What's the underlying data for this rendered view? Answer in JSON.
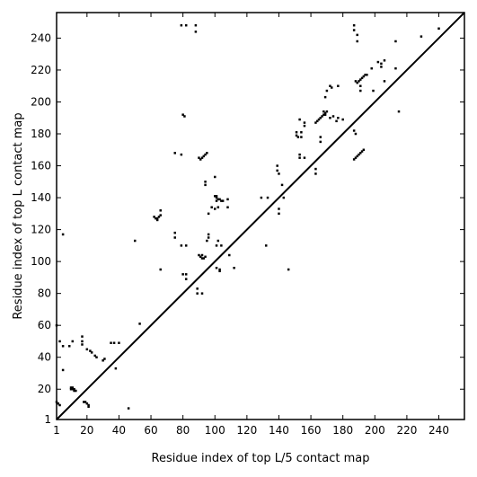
{
  "chart_data": {
    "type": "scatter",
    "title": "",
    "xlabel": "Residue index of top L/5 contact map",
    "ylabel": "Residue index of top L contact map",
    "xlim": [
      1,
      256
    ],
    "ylim": [
      1,
      256
    ],
    "xticks": [
      1,
      20,
      40,
      60,
      80,
      100,
      120,
      140,
      160,
      180,
      200,
      220,
      240
    ],
    "yticks": [
      1,
      20,
      40,
      60,
      80,
      100,
      120,
      140,
      160,
      180,
      200,
      220,
      240
    ],
    "diagonal_line": true,
    "grid": false,
    "marker_color": "#000000",
    "series": [
      {
        "name": "",
        "role": "top L/5 contacts (below diagonal)",
        "points": [
          [
            10,
            21
          ],
          [
            11,
            21
          ],
          [
            12,
            20
          ],
          [
            11,
            20
          ],
          [
            12,
            19
          ],
          [
            13,
            19
          ],
          [
            10,
            20
          ],
          [
            18,
            12
          ],
          [
            19,
            12
          ],
          [
            20,
            11
          ],
          [
            21,
            10
          ],
          [
            21,
            9
          ],
          [
            25,
            41
          ],
          [
            26,
            40
          ],
          [
            22,
            44
          ],
          [
            23,
            43
          ],
          [
            90,
            165
          ],
          [
            91,
            164
          ],
          [
            92,
            165
          ],
          [
            93,
            166
          ],
          [
            94,
            167
          ],
          [
            95,
            168
          ],
          [
            90,
            104
          ],
          [
            91,
            103
          ],
          [
            92,
            102
          ],
          [
            93,
            102
          ],
          [
            94,
            103
          ],
          [
            92,
            104
          ],
          [
            100,
            141
          ],
          [
            101,
            140
          ],
          [
            102,
            139
          ],
          [
            103,
            139
          ],
          [
            104,
            138
          ],
          [
            105,
            138
          ],
          [
            163,
            187
          ],
          [
            164,
            188
          ],
          [
            165,
            189
          ],
          [
            166,
            190
          ],
          [
            167,
            191
          ],
          [
            168,
            192
          ],
          [
            169,
            193
          ],
          [
            170,
            194
          ],
          [
            168,
            194
          ],
          [
            169,
            192
          ],
          [
            187,
            164
          ],
          [
            188,
            165
          ],
          [
            189,
            166
          ],
          [
            190,
            167
          ],
          [
            191,
            168
          ],
          [
            192,
            169
          ],
          [
            193,
            170
          ],
          [
            188,
            213
          ],
          [
            189,
            212
          ],
          [
            190,
            213
          ],
          [
            191,
            214
          ],
          [
            192,
            215
          ],
          [
            193,
            216
          ],
          [
            194,
            217
          ],
          [
            195,
            217
          ]
        ]
      },
      {
        "name": "",
        "role": "top L contacts (above diagonal)",
        "points": [
          [
            1,
            60
          ],
          [
            1,
            12
          ],
          [
            2,
            11
          ],
          [
            3,
            10
          ],
          [
            3,
            50
          ],
          [
            5,
            47
          ],
          [
            5,
            117
          ],
          [
            5,
            32
          ],
          [
            9,
            47
          ],
          [
            11,
            50
          ],
          [
            17,
            53
          ],
          [
            17,
            50
          ],
          [
            17,
            48
          ],
          [
            20,
            45
          ],
          [
            30,
            38
          ],
          [
            31,
            39
          ],
          [
            35,
            49
          ],
          [
            37,
            49
          ],
          [
            38,
            33
          ],
          [
            40,
            49
          ],
          [
            46,
            8
          ],
          [
            50,
            113
          ],
          [
            53,
            61
          ],
          [
            62,
            128
          ],
          [
            63,
            127
          ],
          [
            64,
            127
          ],
          [
            64,
            126
          ],
          [
            65,
            128
          ],
          [
            66,
            132
          ],
          [
            66,
            129
          ],
          [
            66,
            95
          ],
          [
            75,
            118
          ],
          [
            75,
            115
          ],
          [
            75,
            168
          ],
          [
            79,
            167
          ],
          [
            79,
            110
          ],
          [
            80,
            192
          ],
          [
            81,
            191
          ],
          [
            79,
            248
          ],
          [
            82,
            248
          ],
          [
            80,
            92
          ],
          [
            82,
            89
          ],
          [
            82,
            92
          ],
          [
            82,
            110
          ],
          [
            88,
            248
          ],
          [
            88,
            244
          ],
          [
            89,
            83
          ],
          [
            89,
            80
          ],
          [
            92,
            80
          ],
          [
            94,
            150
          ],
          [
            94,
            148
          ],
          [
            95,
            113
          ],
          [
            96,
            130
          ],
          [
            96,
            117
          ],
          [
            96,
            115
          ],
          [
            98,
            134
          ],
          [
            100,
            133
          ],
          [
            100,
            153
          ],
          [
            101,
            141
          ],
          [
            101,
            138
          ],
          [
            101,
            110
          ],
          [
            101,
            96
          ],
          [
            102,
            113
          ],
          [
            102,
            134
          ],
          [
            103,
            94
          ],
          [
            103,
            95
          ],
          [
            104,
            110
          ],
          [
            108,
            139
          ],
          [
            108,
            134
          ],
          [
            109,
            104
          ],
          [
            112,
            96
          ],
          [
            129,
            140
          ],
          [
            132,
            110
          ],
          [
            133,
            140
          ],
          [
            139,
            160
          ],
          [
            139,
            157
          ],
          [
            140,
            155
          ],
          [
            140,
            133
          ],
          [
            140,
            130
          ],
          [
            142,
            148
          ],
          [
            143,
            140
          ],
          [
            146,
            95
          ],
          [
            151,
            181
          ],
          [
            151,
            179
          ],
          [
            152,
            178
          ],
          [
            153,
            167
          ],
          [
            153,
            165
          ],
          [
            153,
            189
          ],
          [
            154,
            178
          ],
          [
            154,
            181
          ],
          [
            156,
            187
          ],
          [
            156,
            185
          ],
          [
            156,
            165
          ],
          [
            163,
            158
          ],
          [
            163,
            155
          ],
          [
            166,
            178
          ],
          [
            166,
            175
          ],
          [
            169,
            203
          ],
          [
            170,
            207
          ],
          [
            172,
            190
          ],
          [
            172,
            210
          ],
          [
            173,
            209
          ],
          [
            174,
            191
          ],
          [
            176,
            188
          ],
          [
            177,
            190
          ],
          [
            177,
            210
          ],
          [
            180,
            189
          ],
          [
            187,
            248
          ],
          [
            187,
            245
          ],
          [
            187,
            182
          ],
          [
            188,
            180
          ],
          [
            189,
            242
          ],
          [
            189,
            238
          ],
          [
            191,
            207
          ],
          [
            191,
            210
          ],
          [
            198,
            221
          ],
          [
            199,
            207
          ],
          [
            202,
            225
          ],
          [
            204,
            224
          ],
          [
            204,
            222
          ],
          [
            206,
            213
          ],
          [
            206,
            226
          ],
          [
            213,
            238
          ],
          [
            213,
            221
          ],
          [
            215,
            194
          ],
          [
            229,
            241
          ],
          [
            240,
            246
          ]
        ]
      }
    ]
  }
}
